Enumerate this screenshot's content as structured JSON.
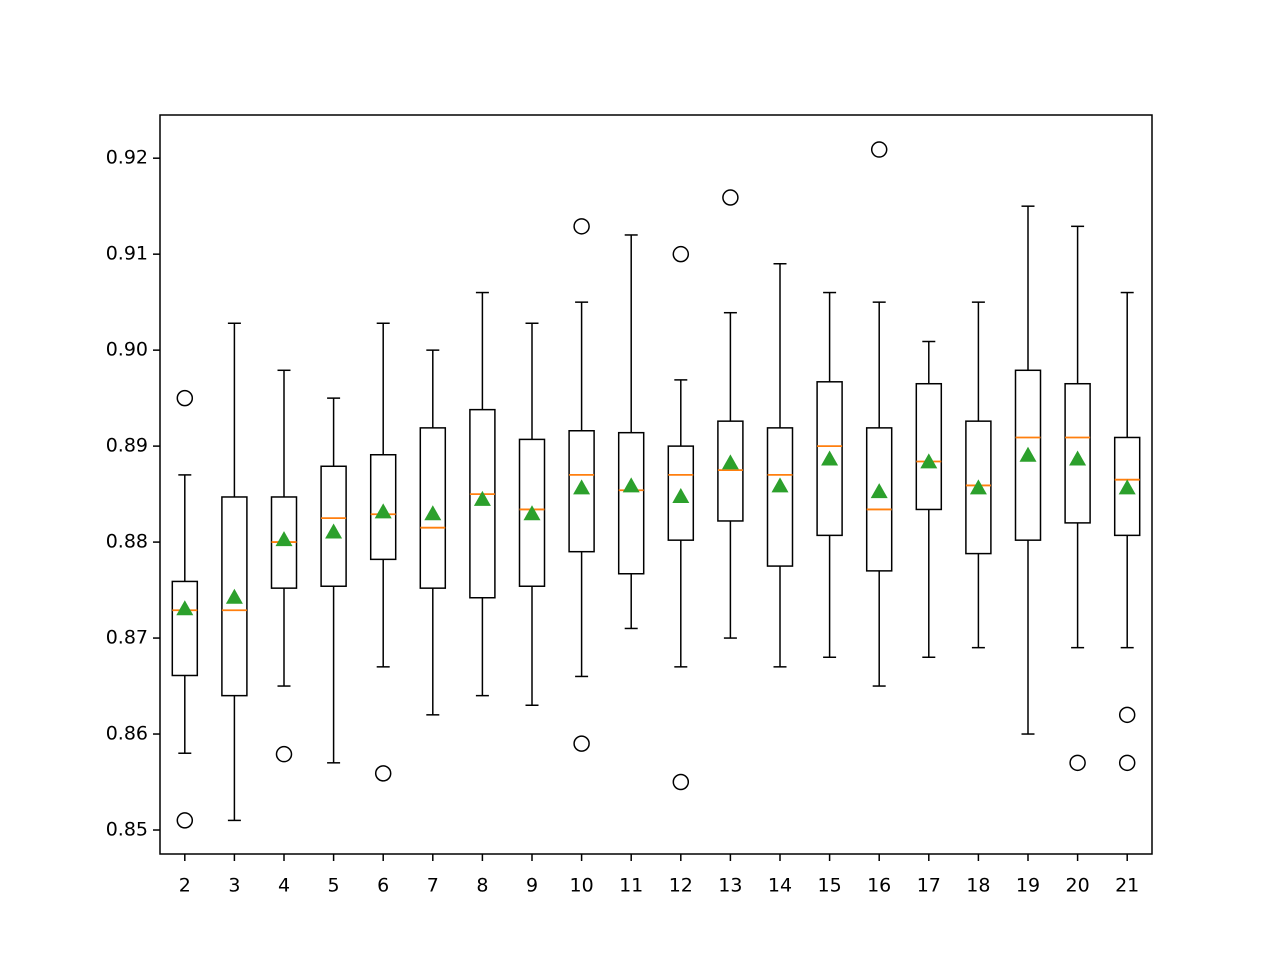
{
  "chart_data": {
    "type": "box",
    "categories": [
      "2",
      "3",
      "4",
      "5",
      "6",
      "7",
      "8",
      "9",
      "10",
      "11",
      "12",
      "13",
      "14",
      "15",
      "16",
      "17",
      "18",
      "19",
      "20",
      "21"
    ],
    "whisker_low": [
      0.858,
      0.851,
      0.865,
      0.857,
      0.867,
      0.862,
      0.864,
      0.863,
      0.866,
      0.871,
      0.867,
      0.87,
      0.867,
      0.868,
      0.865,
      0.868,
      0.869,
      0.86,
      0.869,
      0.869
    ],
    "q1": [
      0.8661,
      0.864,
      0.8752,
      0.8754,
      0.8782,
      0.8752,
      0.8742,
      0.8754,
      0.879,
      0.8767,
      0.8802,
      0.8822,
      0.8775,
      0.8807,
      0.877,
      0.8834,
      0.8788,
      0.8802,
      0.882,
      0.8807
    ],
    "median": [
      0.8729,
      0.8729,
      0.88,
      0.8825,
      0.8829,
      0.8815,
      0.885,
      0.8834,
      0.887,
      0.8854,
      0.887,
      0.8875,
      0.887,
      0.89,
      0.8834,
      0.8884,
      0.8859,
      0.8909,
      0.8909,
      0.8865
    ],
    "q3": [
      0.8759,
      0.8847,
      0.8847,
      0.8879,
      0.8891,
      0.8919,
      0.8938,
      0.8907,
      0.8916,
      0.8914,
      0.89,
      0.8926,
      0.8919,
      0.8967,
      0.8919,
      0.8965,
      0.8926,
      0.8979,
      0.8965,
      0.8909
    ],
    "whisker_high": [
      0.887,
      0.9028,
      0.8979,
      0.895,
      0.9028,
      0.9,
      0.906,
      0.9028,
      0.905,
      0.912,
      0.8969,
      0.9039,
      0.909,
      0.906,
      0.905,
      0.9009,
      0.905,
      0.915,
      0.9129,
      0.906
    ],
    "mean": [
      0.873,
      0.8742,
      0.8802,
      0.881,
      0.8831,
      0.8829,
      0.8844,
      0.8829,
      0.8856,
      0.8858,
      0.8847,
      0.8882,
      0.8858,
      0.8886,
      0.8852,
      0.8883,
      0.8856,
      0.889,
      0.8886,
      0.8856
    ],
    "outliers": [
      [
        0.895,
        0.851
      ],
      [],
      [
        0.8579
      ],
      [],
      [
        0.8559
      ],
      [],
      [],
      [],
      [
        0.9129,
        0.859
      ],
      [],
      [
        0.91,
        0.855
      ],
      [
        0.9159
      ],
      [],
      [],
      [
        0.9209
      ],
      [],
      [],
      [],
      [
        0.857
      ],
      [
        0.862,
        0.857
      ]
    ],
    "box_color": "#000000",
    "median_color": "#ff7f0e",
    "mean_color": "#2ca02c",
    "ylim": [
      0.8475,
      0.9245
    ],
    "yticks": [
      0.85,
      0.86,
      0.87,
      0.88,
      0.89,
      {
        "value": 0.9,
        "label": "0.90"
      },
      0.91,
      0.92
    ]
  }
}
